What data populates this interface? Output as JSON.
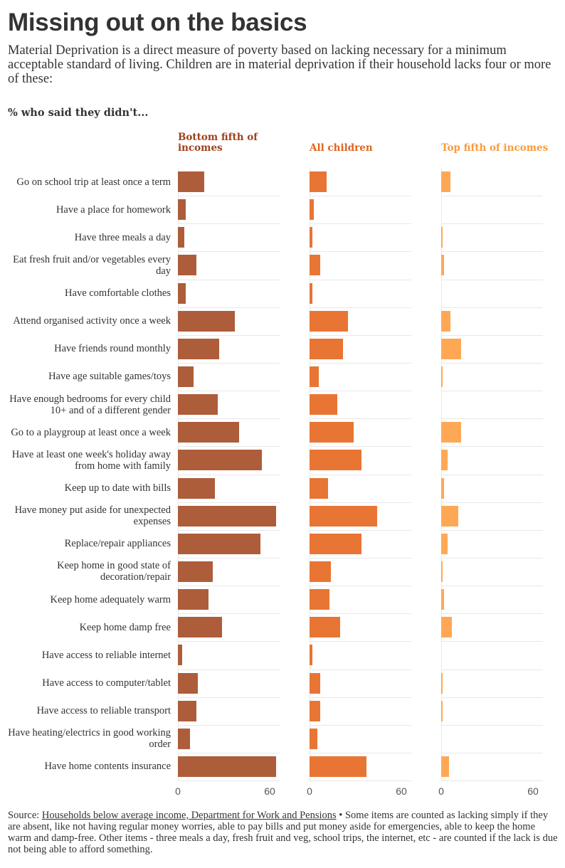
{
  "title": "Missing out on the basics",
  "subtitle": "Material Deprivation is a direct measure of poverty based on lacking necessary for a minimum acceptable standard of living. Children are in material deprivation if their household lacks four or more of these:",
  "source": {
    "prefix": "Source: ",
    "link": "Households below average income, Department for Work and Pensions",
    "note": " • Some items are counted as lacking simply if they are absent, like not having regular money worries, able to pay bills and put money aside for emergencies, able to keep the home warm and damp-free. Other items - three meals a day, fresh fruit and veg, school trips, the internet, etc - are counted if the lack is due not being able to afford something."
  },
  "chart_data": {
    "type": "bar",
    "title": "% who said they didn't...",
    "xlim": [
      0,
      64
    ],
    "xticks": [
      "0",
      "60"
    ],
    "categories": [
      "Go on school trip at least once a term",
      "Have a place for homework",
      "Have three meals a day",
      "Eat fresh fruit and/or vegetables every day",
      "Have comfortable clothes",
      "Attend organised activity once a week",
      "Have friends round monthly",
      "Have age suitable games/toys",
      "Have enough bedrooms for every child 10+ and of a different gender",
      "Go to a playgroup at least once a week",
      "Have at least one week's holiday away from home with family",
      "Keep up to date with bills",
      "Have money put aside for unexpected expenses",
      "Replace/repair appliances",
      "Keep home in good state of decoration/repair",
      "Keep home adequately warm",
      "Keep home damp free",
      "Have access to reliable internet",
      "Have access to computer/tablet",
      "Have access to reliable transport",
      "Have heating/electrics in good working order",
      "Have home contents insurance"
    ],
    "series": [
      {
        "name": "Bottom fifth of incomes",
        "color": "#ad5d3a",
        "header_color": "#a0401c",
        "values": [
          17,
          5,
          4,
          12,
          5,
          37,
          27,
          10,
          26,
          40,
          55,
          24,
          64,
          54,
          23,
          20,
          29,
          3,
          13,
          12,
          8,
          64
        ]
      },
      {
        "name": "All children",
        "color": "#e87534",
        "header_color": "#e0641e",
        "values": [
          11,
          3,
          2,
          7,
          2,
          25,
          22,
          6,
          18,
          29,
          34,
          12,
          44,
          34,
          14,
          13,
          20,
          2,
          7,
          7,
          5,
          37
        ]
      },
      {
        "name": "Top fifth of incomes",
        "color": "#fea855",
        "header_color": "#f99a3c",
        "values": [
          6,
          0,
          1,
          2,
          0,
          6,
          13,
          1,
          0,
          13,
          4,
          2,
          11,
          4,
          1,
          2,
          7,
          0,
          1,
          1,
          0,
          5
        ]
      }
    ]
  }
}
